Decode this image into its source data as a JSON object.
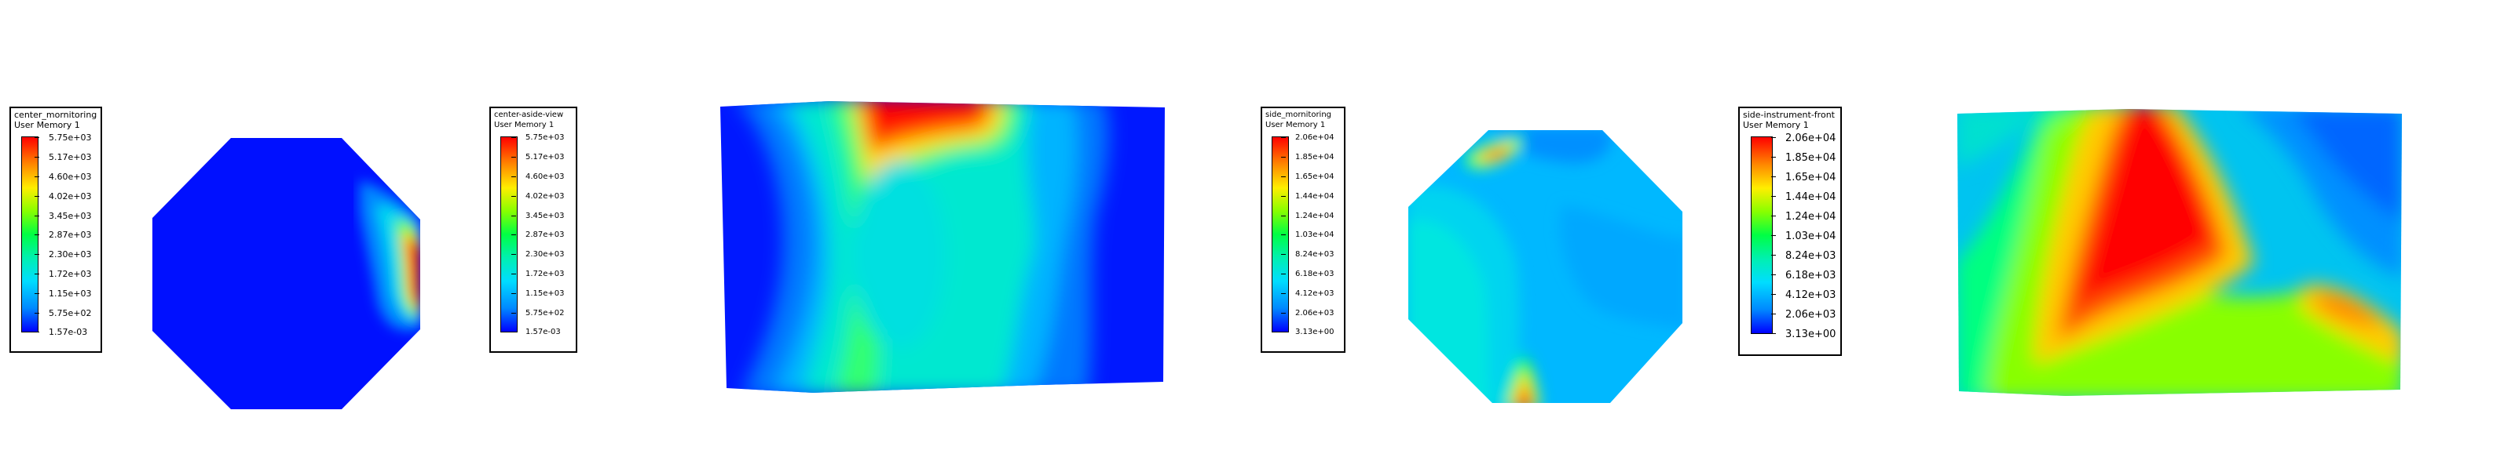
{
  "colors": {
    "scale": [
      "#0000ff",
      "#0066ff",
      "#00aaff",
      "#00e6c8",
      "#00ff60",
      "#7fff00",
      "#ffee00",
      "#ff9900",
      "#ff0000"
    ]
  },
  "legends": [
    {
      "title": "center_mornitoring",
      "subtitle": "User Memory 1",
      "ticks": [
        "5.75e+03",
        "5.17e+03",
        "4.60e+03",
        "4.02e+03",
        "3.45e+03",
        "2.87e+03",
        "2.30e+03",
        "1.72e+03",
        "1.15e+03",
        "5.75e+02",
        "1.57e-03"
      ]
    },
    {
      "title": "center-aside-view",
      "subtitle": "User Memory 1",
      "ticks": [
        "5.75e+03",
        "5.17e+03",
        "4.60e+03",
        "4.02e+03",
        "3.45e+03",
        "2.87e+03",
        "2.30e+03",
        "1.72e+03",
        "1.15e+03",
        "5.75e+02",
        "1.57e-03"
      ]
    },
    {
      "title": "side_mornitoring",
      "subtitle": "User Memory 1",
      "ticks": [
        "2.06e+04",
        "1.85e+04",
        "1.65e+04",
        "1.44e+04",
        "1.24e+04",
        "1.03e+04",
        "8.24e+03",
        "6.18e+03",
        "4.12e+03",
        "2.06e+03",
        "3.13e+00"
      ]
    },
    {
      "title": "side-instrument-front",
      "subtitle": "User Memory 1",
      "ticks": [
        "2.06e+04",
        "1.85e+04",
        "1.65e+04",
        "1.44e+04",
        "1.24e+04",
        "1.03e+04",
        "8.24e+03",
        "6.18e+03",
        "4.12e+03",
        "2.06e+03",
        "3.13e+00"
      ]
    }
  ]
}
